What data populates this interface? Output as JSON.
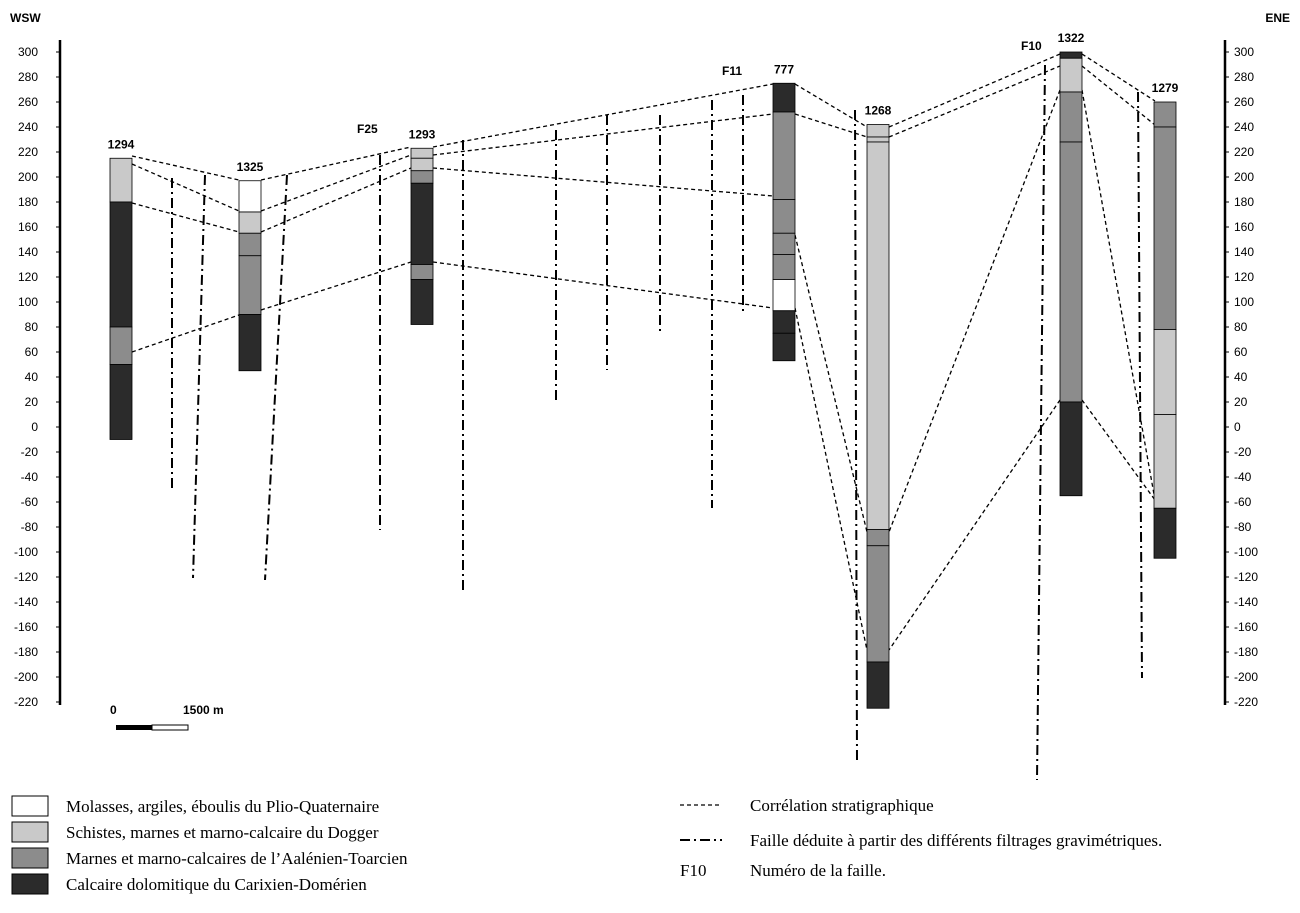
{
  "header": {
    "left": "WSW",
    "right": "ENE"
  },
  "axis": {
    "ylim": [
      -220,
      300
    ],
    "ticks": [
      300,
      280,
      260,
      240,
      220,
      200,
      180,
      160,
      140,
      120,
      100,
      80,
      60,
      40,
      20,
      0,
      -20,
      -40,
      -60,
      -80,
      -100,
      -120,
      -140,
      -160,
      -180,
      -200,
      -220
    ]
  },
  "wells": [
    {
      "name": "1294",
      "layers": [
        [
          215,
          180,
          1
        ],
        [
          180,
          80,
          3
        ],
        [
          80,
          50,
          2
        ],
        [
          50,
          -10,
          3
        ]
      ]
    },
    {
      "name": "1325",
      "layers": [
        [
          197,
          172,
          0
        ],
        [
          172,
          155,
          1
        ],
        [
          155,
          137,
          2
        ],
        [
          137,
          90,
          2
        ],
        [
          90,
          45,
          3
        ]
      ]
    },
    {
      "name": "1293",
      "layers": [
        [
          223,
          215,
          1
        ],
        [
          215,
          205,
          1
        ],
        [
          205,
          195,
          2
        ],
        [
          195,
          130,
          3
        ],
        [
          130,
          118,
          2
        ],
        [
          118,
          82,
          3
        ]
      ]
    },
    {
      "name": "777",
      "layers": [
        [
          275,
          252,
          3
        ],
        [
          252,
          182,
          2
        ],
        [
          182,
          155,
          2
        ],
        [
          155,
          138,
          2
        ],
        [
          138,
          118,
          2
        ],
        [
          118,
          93,
          0
        ],
        [
          93,
          75,
          3
        ],
        [
          75,
          53,
          3
        ]
      ]
    },
    {
      "name": "1268",
      "layers": [
        [
          242,
          232,
          1
        ],
        [
          232,
          228,
          1
        ],
        [
          228,
          -82,
          1
        ],
        [
          -82,
          -95,
          2
        ],
        [
          -95,
          -188,
          2
        ],
        [
          -188,
          -225,
          3
        ]
      ]
    },
    {
      "name": "1322",
      "layers": [
        [
          300,
          295,
          3
        ],
        [
          295,
          268,
          1
        ],
        [
          268,
          228,
          2
        ],
        [
          228,
          20,
          2
        ],
        [
          20,
          -55,
          3
        ]
      ]
    },
    {
      "name": "1279",
      "layers": [
        [
          260,
          240,
          2
        ],
        [
          240,
          78,
          2
        ],
        [
          78,
          10,
          1
        ],
        [
          10,
          -65,
          1
        ],
        [
          -65,
          -105,
          3
        ]
      ]
    }
  ],
  "fault_labels": [
    "F25",
    "F11",
    "F10"
  ],
  "scale_bar": {
    "start": "0",
    "end": "1500 m"
  },
  "legend": {
    "units": [
      {
        "label": "Molasses, argiles, éboulis du Plio-Quaternaire",
        "color": "#ffffff"
      },
      {
        "label": "Schistes, marnes et marno-calcaire du Dogger",
        "color": "#c9c9c9"
      },
      {
        "label": "Marnes et marno-calcaires de l’Aalénien-Toarcien",
        "color": "#8c8c8c"
      },
      {
        "label": "Calcaire dolomitique du Carixien-Domérien",
        "color": "#2b2b2b"
      }
    ],
    "correlation": "Corrélation stratigraphique",
    "fault": "Faille déduite à partir des différents filtrages gravimétriques.",
    "fault_key": "F10",
    "fault_number": "Numéro de la faille."
  }
}
